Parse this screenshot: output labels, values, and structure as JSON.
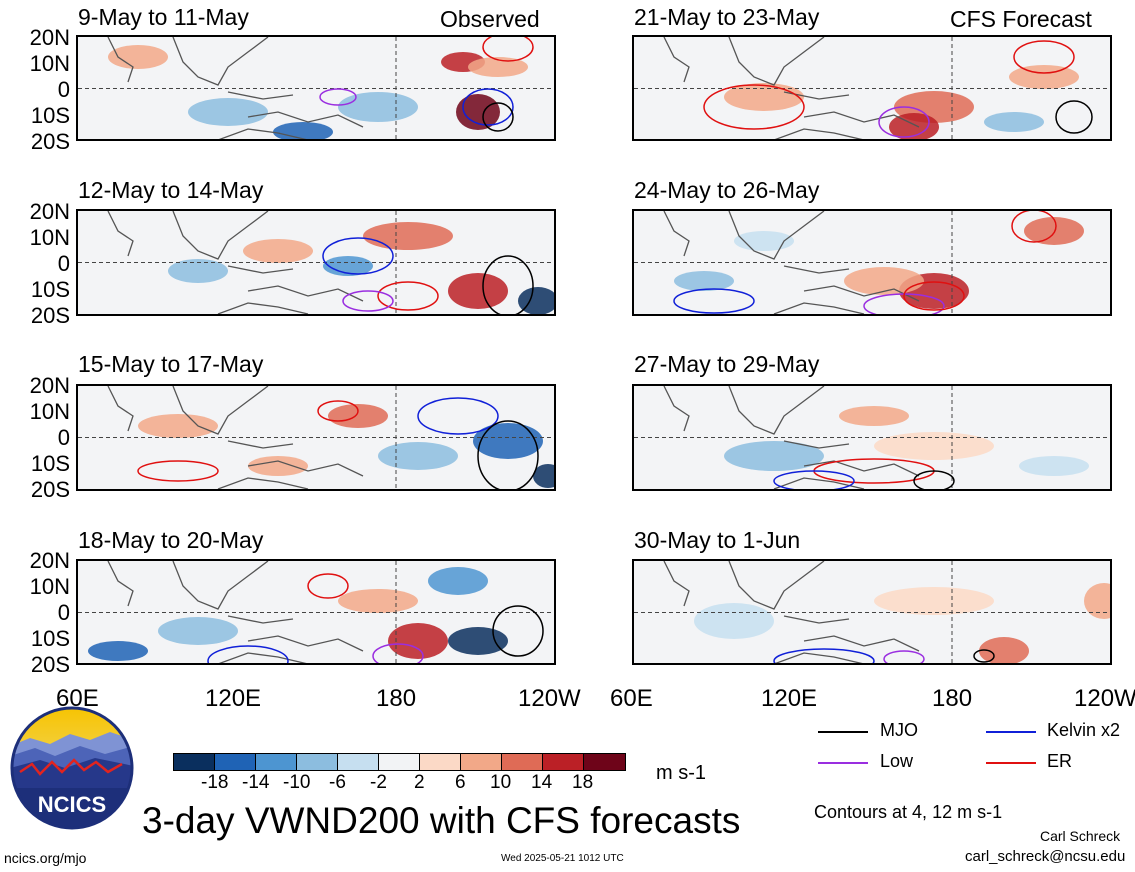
{
  "left_header": "Observed",
  "right_header": "CFS Forecast",
  "lat_labels": [
    "20N",
    "10N",
    "0",
    "10S",
    "20S"
  ],
  "lon_labels": [
    "60E",
    "120E",
    "180",
    "120W"
  ],
  "panels": [
    {
      "title": "9-May to 11-May",
      "col": 0,
      "row": 0
    },
    {
      "title": "12-May to 14-May",
      "col": 0,
      "row": 1
    },
    {
      "title": "15-May to 17-May",
      "col": 0,
      "row": 2
    },
    {
      "title": "18-May to 20-May",
      "col": 0,
      "row": 3
    },
    {
      "title": "21-May to 23-May",
      "col": 1,
      "row": 0
    },
    {
      "title": "24-May to 26-May",
      "col": 1,
      "row": 1
    },
    {
      "title": "27-May to 29-May",
      "col": 1,
      "row": 2
    },
    {
      "title": "30-May to 1-Jun",
      "col": 1,
      "row": 3
    }
  ],
  "colorbar": {
    "colors": [
      "#0a2f5e",
      "#1f63b5",
      "#4d95d1",
      "#8cbddf",
      "#c6dff0",
      "#f2f3f5",
      "#fbd9c6",
      "#f2a888",
      "#df6b56",
      "#bb2026",
      "#6e0419"
    ],
    "tick_labels": [
      "-18",
      "-14",
      "-10",
      "-6",
      "-2",
      "2",
      "6",
      "10",
      "14",
      "18"
    ],
    "units": "m s-1"
  },
  "legend": [
    {
      "label": "MJO",
      "color": "#000000"
    },
    {
      "label": "Kelvin x2",
      "color": "#1020d8"
    },
    {
      "label": "Low",
      "color": "#9a2ee0"
    },
    {
      "label": "ER",
      "color": "#e01010"
    }
  ],
  "title": "3-day VWND200 with CFS forecasts",
  "contour_note": "Contours at 4, 12 m s-1",
  "author": "Carl Schreck",
  "email": "carl_schreck@ncsu.edu",
  "url": "ncics.org/mjo",
  "timestamp": "Wed 2025-05-21 1012 UTC",
  "logo_text": "NCICS"
}
